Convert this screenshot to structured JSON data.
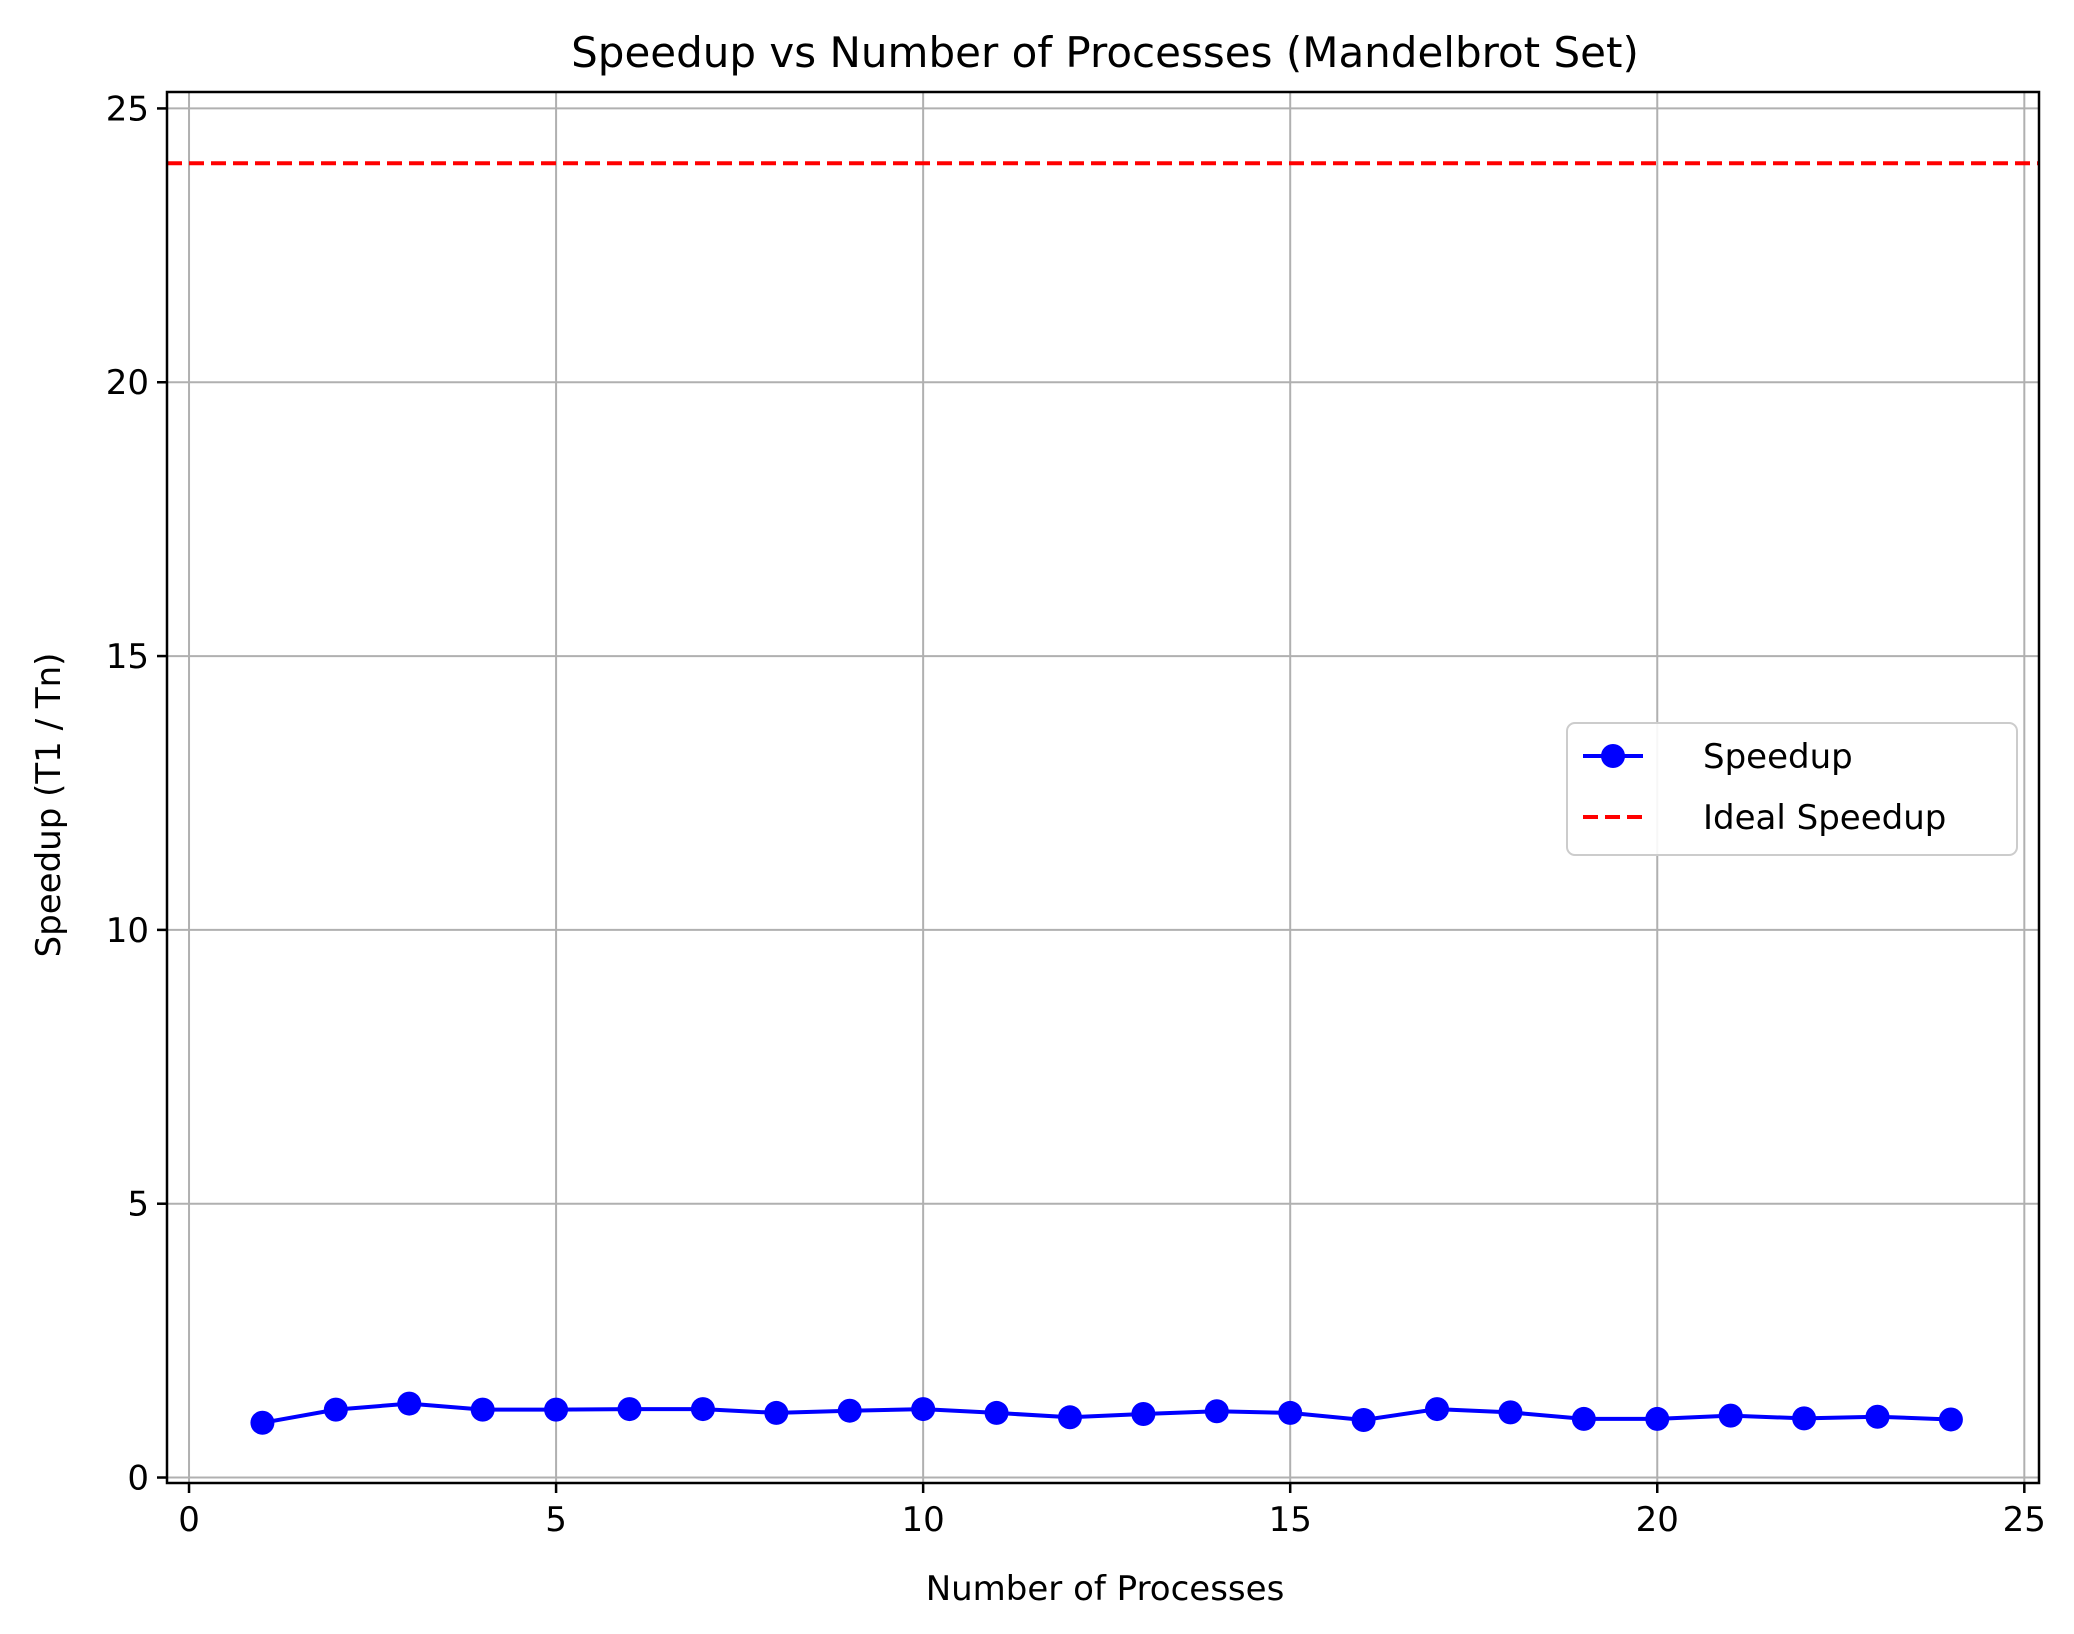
{
  "chart_data": {
    "type": "line",
    "title": "Speedup vs Number of Processes (Mandelbrot Set)",
    "xlabel": "Number of Processes",
    "ylabel": "Speedup (T1 / Tn)",
    "xlim": [
      -0.3,
      25.2
    ],
    "ylim": [
      -0.1,
      25.3
    ],
    "xticks": [
      0,
      5,
      10,
      15,
      20,
      25
    ],
    "yticks": [
      0,
      5,
      10,
      15,
      20,
      25
    ],
    "grid": true,
    "legend_position": "center-right",
    "series": [
      {
        "name": "Speedup",
        "color": "#0000ff",
        "style": "solid",
        "marker": "circle",
        "x": [
          1,
          2,
          3,
          4,
          5,
          6,
          7,
          8,
          9,
          10,
          11,
          12,
          13,
          14,
          15,
          16,
          17,
          18,
          19,
          20,
          21,
          22,
          23,
          24
        ],
        "y": [
          1.0,
          1.24,
          1.35,
          1.24,
          1.24,
          1.25,
          1.25,
          1.18,
          1.22,
          1.25,
          1.18,
          1.1,
          1.16,
          1.21,
          1.18,
          1.05,
          1.25,
          1.19,
          1.07,
          1.07,
          1.13,
          1.08,
          1.11,
          1.06
        ]
      },
      {
        "name": "Ideal Speedup",
        "color": "#ff0000",
        "style": "dashed",
        "y_constant": 24
      }
    ]
  }
}
